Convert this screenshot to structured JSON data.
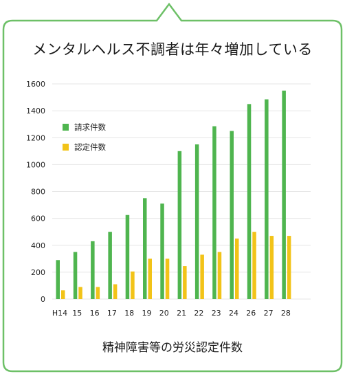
{
  "title": "メンタルヘルス不調者は年々増加している",
  "caption": "精神障害等の労災認定件数",
  "colors": {
    "border": "#6dc067",
    "claims": "#4fb54f",
    "certified": "#f2c318",
    "grid": "#e6e6e6"
  },
  "chart_data": {
    "type": "bar",
    "title": "",
    "xlabel": "",
    "ylabel": "",
    "categories": [
      "H14",
      "15",
      "16",
      "17",
      "18",
      "19",
      "20",
      "21",
      "22",
      "23",
      "24",
      "26",
      "27",
      "28"
    ],
    "series": [
      {
        "name": "請求件数",
        "values": [
          290,
          350,
          430,
          500,
          625,
          750,
          710,
          1100,
          1150,
          1285,
          1250,
          1450,
          1485,
          1550
        ]
      },
      {
        "name": "認定件数",
        "values": [
          65,
          90,
          90,
          110,
          205,
          300,
          300,
          245,
          330,
          350,
          450,
          500,
          470,
          470
        ]
      }
    ],
    "ylim": [
      0,
      1600
    ],
    "yticks": [
      0,
      200,
      400,
      600,
      800,
      1000,
      1200,
      1400,
      1600
    ],
    "grid": true,
    "legend": "top-left"
  }
}
